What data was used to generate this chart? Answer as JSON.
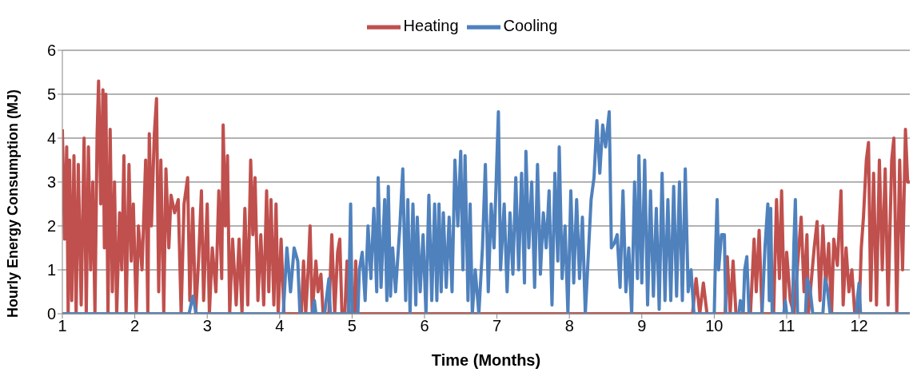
{
  "chart_data": {
    "type": "line",
    "xlabel": "Time (Months)",
    "ylabel": "Hourly Energy Consumption (MJ)",
    "xlim": [
      1,
      12.7
    ],
    "xticks": [
      1,
      2,
      3,
      4,
      5,
      6,
      7,
      8,
      9,
      10,
      11,
      12
    ],
    "ylim": [
      0,
      6
    ],
    "yticks": [
      0,
      1,
      2,
      3,
      4,
      5,
      6
    ],
    "grid": "y",
    "legend": "top",
    "marker": "none",
    "line_style": "solid",
    "series": [
      {
        "name": "Heating",
        "color": "#c0504d",
        "x": [
          1.0,
          1.03,
          1.06,
          1.08,
          1.1,
          1.13,
          1.16,
          1.19,
          1.22,
          1.26,
          1.3,
          1.33,
          1.36,
          1.39,
          1.42,
          1.45,
          1.48,
          1.5,
          1.53,
          1.56,
          1.58,
          1.6,
          1.63,
          1.66,
          1.69,
          1.72,
          1.75,
          1.79,
          1.82,
          1.85,
          1.88,
          1.92,
          1.95,
          1.98,
          2.02,
          2.05,
          2.1,
          2.15,
          2.18,
          2.2,
          2.23,
          2.27,
          2.3,
          2.33,
          2.36,
          2.4,
          2.43,
          2.47,
          2.5,
          2.55,
          2.6,
          2.64,
          2.68,
          2.73,
          2.76,
          2.8,
          2.84,
          2.88,
          2.92,
          2.95,
          3.0,
          3.03,
          3.07,
          3.12,
          3.16,
          3.2,
          3.22,
          3.25,
          3.28,
          3.31,
          3.35,
          3.4,
          3.44,
          3.48,
          3.52,
          3.56,
          3.6,
          3.63,
          3.66,
          3.7,
          3.74,
          3.78,
          3.82,
          3.85,
          3.88,
          3.92,
          3.95,
          3.98,
          4.02,
          4.06,
          4.3,
          4.33,
          4.36,
          4.4,
          4.42,
          4.45,
          4.5,
          4.53,
          4.57,
          4.6,
          4.68,
          4.72,
          4.76,
          4.8,
          4.83,
          4.86,
          4.9,
          4.93,
          4.96,
          5.03,
          5.05,
          5.07,
          9.7,
          9.75,
          9.8,
          9.85,
          9.9,
          10.15,
          10.18,
          10.22,
          10.26,
          10.3,
          10.5,
          10.55,
          10.58,
          10.62,
          10.66,
          10.82,
          10.86,
          10.9,
          10.93,
          10.97,
          11.0,
          11.05,
          11.1,
          11.2,
          11.24,
          11.28,
          11.3,
          11.38,
          11.42,
          11.46,
          11.5,
          11.54,
          11.58,
          11.62,
          11.65,
          11.7,
          11.75,
          11.78,
          11.82,
          11.86,
          11.9,
          11.94,
          12.0,
          12.03,
          12.06,
          12.1,
          12.13,
          12.16,
          12.2,
          12.24,
          12.28,
          12.32,
          12.36,
          12.4,
          12.45,
          12.48,
          12.52,
          12.56,
          12.6,
          12.64,
          12.67,
          12.7
        ],
        "values": [
          4.2,
          1.7,
          3.8,
          0,
          3.5,
          0.3,
          3.6,
          0,
          3.4,
          0.2,
          4.0,
          0,
          3.8,
          1.0,
          3.0,
          0,
          4.1,
          5.3,
          2.5,
          5.1,
          1.5,
          5.0,
          0,
          4.2,
          0.5,
          3.0,
          0,
          2.3,
          1.0,
          3.6,
          0,
          3.4,
          1.2,
          2.5,
          0,
          2.0,
          1.0,
          3.5,
          0,
          4.1,
          2.0,
          4.1,
          4.9,
          0.5,
          3.5,
          0,
          3.3,
          1.5,
          2.7,
          2.3,
          2.6,
          0,
          2.5,
          3.1,
          0.3,
          2.4,
          0,
          1.2,
          2.8,
          0.3,
          2.5,
          0,
          1.5,
          0.5,
          2.8,
          0.8,
          4.3,
          2.0,
          3.6,
          0,
          1.7,
          0.2,
          1.7,
          0,
          2.4,
          0.2,
          3.5,
          1.8,
          3.1,
          0.3,
          1.8,
          0.2,
          2.8,
          0.5,
          2.6,
          0.2,
          2.5,
          0,
          1.7,
          0,
          0,
          1.2,
          0,
          1.2,
          2.0,
          0,
          1.2,
          0.5,
          0.9,
          0,
          0,
          1.8,
          0,
          1.4,
          1.7,
          0,
          0,
          1.2,
          0,
          0,
          1.2,
          0,
          0,
          0.8,
          0,
          0.7,
          0,
          0,
          1.3,
          0,
          1.2,
          0,
          0,
          1.7,
          0.5,
          1.9,
          0,
          0,
          2.6,
          0.8,
          2.8,
          0,
          1.4,
          0.3,
          0,
          2.2,
          0.5,
          1.8,
          0,
          1.5,
          2.1,
          0.3,
          2.0,
          0.6,
          1.6,
          0,
          1.7,
          1.1,
          2.8,
          0.2,
          1.5,
          0.5,
          1.0,
          0,
          0,
          1.5,
          2.2,
          3.5,
          3.9,
          0.3,
          3.2,
          0.2,
          3.5,
          1.0,
          3.3,
          0.2,
          3.5,
          4.0,
          0,
          3.5,
          1.0,
          4.2,
          3.0,
          3.0
        ]
      },
      {
        "name": "Cooling",
        "color": "#4f81bd",
        "x": [
          1.0,
          2.75,
          2.8,
          2.85,
          4.05,
          4.1,
          4.15,
          4.2,
          4.25,
          4.28,
          4.45,
          4.48,
          4.5,
          4.62,
          4.65,
          4.68,
          4.7,
          4.95,
          4.98,
          5.0,
          5.08,
          5.1,
          5.14,
          5.18,
          5.22,
          5.26,
          5.3,
          5.34,
          5.36,
          5.4,
          5.45,
          5.48,
          5.5,
          5.53,
          5.56,
          5.6,
          5.66,
          5.7,
          5.74,
          5.77,
          5.8,
          5.84,
          5.88,
          5.9,
          5.94,
          5.98,
          6.02,
          6.06,
          6.1,
          6.14,
          6.17,
          6.2,
          6.23,
          6.26,
          6.3,
          6.34,
          6.38,
          6.42,
          6.46,
          6.5,
          6.53,
          6.56,
          6.6,
          6.63,
          6.66,
          6.7,
          6.75,
          6.8,
          6.84,
          6.88,
          6.92,
          6.96,
          7.02,
          7.05,
          7.1,
          7.14,
          7.18,
          7.22,
          7.26,
          7.3,
          7.34,
          7.38,
          7.4,
          7.44,
          7.48,
          7.52,
          7.56,
          7.6,
          7.64,
          7.68,
          7.72,
          7.76,
          7.8,
          7.84,
          7.86,
          7.9,
          7.94,
          7.98,
          8.02,
          8.06,
          8.1,
          8.14,
          8.18,
          8.22,
          8.26,
          8.3,
          8.34,
          8.38,
          8.42,
          8.46,
          8.5,
          8.55,
          8.58,
          8.62,
          8.66,
          8.7,
          8.74,
          8.78,
          8.82,
          8.86,
          8.9,
          8.94,
          8.96,
          9.0,
          9.04,
          9.08,
          9.12,
          9.16,
          9.2,
          9.24,
          9.28,
          9.32,
          9.36,
          9.4,
          9.44,
          9.48,
          9.52,
          9.56,
          9.6,
          9.64,
          9.68,
          9.72,
          10.0,
          10.02,
          10.04,
          10.06,
          10.1,
          10.14,
          10.16,
          10.34,
          10.36,
          10.4,
          10.42,
          10.45,
          10.48,
          10.66,
          10.7,
          10.74,
          10.76,
          10.78,
          10.8,
          10.96,
          10.98,
          11.0,
          11.08,
          11.1,
          11.12,
          11.15,
          11.26,
          11.28,
          11.32,
          11.36,
          11.5,
          11.53,
          11.56,
          11.6,
          11.96,
          11.98,
          12.0,
          12.02,
          12.7
        ],
        "values": [
          0,
          0,
          0.4,
          0,
          0,
          1.5,
          0.5,
          1.5,
          1.2,
          0,
          0,
          0.3,
          0,
          0,
          0.4,
          0.8,
          0,
          0,
          2.5,
          0,
          0,
          1.0,
          1.4,
          0.3,
          2.0,
          0.8,
          2.4,
          0.5,
          3.1,
          0.6,
          2.6,
          0.3,
          2.9,
          0.4,
          1.5,
          0.5,
          2.0,
          3.3,
          0.3,
          2.6,
          0,
          2.5,
          0.2,
          2.2,
          0.5,
          1.8,
          0,
          2.7,
          0.3,
          2.5,
          0.3,
          2.5,
          0.5,
          2.3,
          0.6,
          2.2,
          0.5,
          3.5,
          2.0,
          3.7,
          1.0,
          3.6,
          0.3,
          2.5,
          0,
          1.0,
          0,
          1.5,
          3.4,
          0.5,
          2.5,
          1.5,
          4.6,
          1.0,
          2.5,
          0.5,
          2.3,
          0.9,
          3.1,
          1.0,
          3.2,
          0.7,
          3.7,
          1.5,
          3.0,
          0.6,
          3.4,
          0.9,
          2.3,
          1.5,
          2.8,
          0.2,
          3.2,
          1.2,
          3.8,
          0.8,
          2.0,
          0,
          2.8,
          0.7,
          2.6,
          0.8,
          2.2,
          0,
          1.3,
          2.6,
          3.1,
          4.4,
          3.2,
          4.3,
          3.8,
          4.6,
          1.5,
          1.6,
          1.8,
          0.6,
          2.8,
          0.5,
          1.5,
          0,
          3.0,
          0.8,
          3.6,
          0.7,
          3.5,
          0.2,
          2.8,
          0.4,
          2.4,
          0.1,
          3.2,
          0.3,
          2.6,
          0.3,
          2.9,
          0.4,
          3.0,
          0.3,
          3.3,
          0.5,
          1.0,
          0,
          0,
          1.5,
          2.6,
          1.0,
          1.8,
          1.8,
          0,
          0,
          0.3,
          0,
          1.0,
          1.3,
          0,
          0,
          1.5,
          2.5,
          0.3,
          2.4,
          0,
          0,
          0.3,
          0,
          0,
          1.6,
          2.6,
          0,
          0,
          0.8,
          0.6,
          0,
          0,
          0.8,
          0.6,
          0,
          0,
          0.4,
          0.7,
          0,
          0
        ]
      }
    ]
  }
}
